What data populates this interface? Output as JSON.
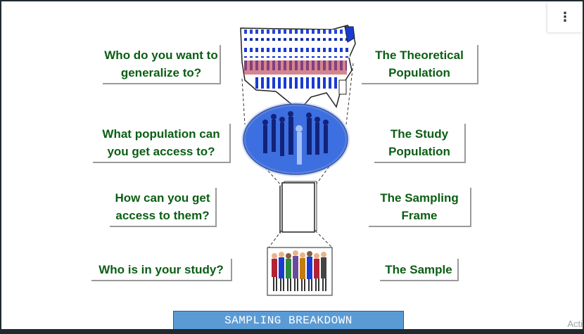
{
  "questions": [
    "Who do you want to generalize to?",
    "What population can you get access to?",
    "How can you get access to them?",
    "Who is in your study?"
  ],
  "stages": [
    "The Theoretical Population",
    "The Study Population",
    "The Sampling Frame",
    "The Sample"
  ],
  "banner": "SAMPLING BREAKDOWN",
  "menu_icon": "more-vert-icon",
  "watermark": "Acti",
  "colors": {
    "text_green": "#0b5e14",
    "flag_red": "#b22234",
    "flag_blue": "#1a3bd1",
    "globe_blue": "#3d6fe0",
    "banner_blue": "#5b9bd5"
  }
}
